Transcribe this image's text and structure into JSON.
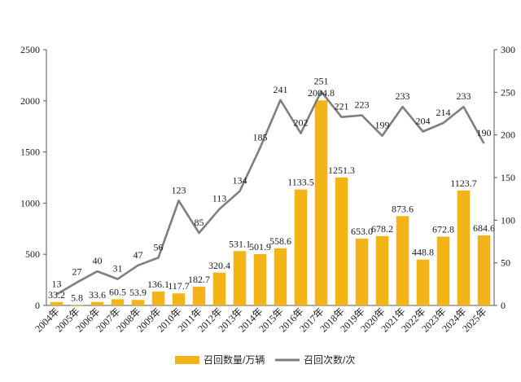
{
  "chart_data": {
    "type": "bar",
    "categories": [
      "2004年",
      "2005年",
      "2006年",
      "2007年",
      "2008年",
      "2009年",
      "2010年",
      "2011年",
      "2012年",
      "2013年",
      "2014年",
      "2015年",
      "2016年",
      "2017年",
      "2018年",
      "2019年",
      "2020年",
      "2021年",
      "2022年",
      "2023年",
      "2024年",
      "2025年"
    ],
    "series": [
      {
        "name": "召回数量/万辆",
        "type": "bar",
        "axis": "left",
        "color": "#f2b416",
        "values": [
          33.2,
          5.8,
          33.6,
          60.5,
          53.9,
          136.1,
          117.7,
          182.7,
          320.4,
          531.1,
          501.9,
          558.6,
          1133.5,
          2004.8,
          1251.3,
          653.0,
          678.2,
          873.6,
          448.8,
          672.8,
          1123.7,
          684.6
        ],
        "labels": [
          "33.2",
          "5.8",
          "33.6",
          "60.5",
          "53.9",
          "136.1",
          "117.7",
          "182.7",
          "320.4",
          "531.1",
          "501.9",
          "558.6",
          "1133.5",
          "2004.8",
          "1251.3",
          "653.0",
          "678.2",
          "873.6",
          "448.8",
          "672.8",
          "1123.7",
          "684.6"
        ]
      },
      {
        "name": "召回次数/次",
        "type": "line",
        "axis": "right",
        "color": "#7f7f7f",
        "values": [
          13,
          27,
          40,
          31,
          47,
          56,
          123,
          85,
          113,
          134,
          185,
          241,
          202,
          251,
          221,
          223,
          199,
          233,
          204,
          214,
          233,
          190
        ],
        "labels": [
          "13",
          "27",
          "40",
          "31",
          "47",
          "56",
          "123",
          "85",
          "113",
          "134",
          "185",
          "241",
          "202",
          "251",
          "221",
          "223",
          "199",
          "233",
          "204",
          "214",
          "233",
          "190"
        ]
      }
    ],
    "y_left": {
      "ylim": [
        0,
        2500
      ],
      "ticks": [
        "0",
        "500",
        "1000",
        "1500",
        "2000",
        "2500"
      ]
    },
    "y_right": {
      "ylim": [
        0,
        300
      ],
      "ticks": [
        "0",
        "50",
        "100",
        "150",
        "200",
        "250",
        "300"
      ]
    },
    "grid": false,
    "legend_position": "bottom-center",
    "title": "",
    "xlabel": "",
    "ylabel": ""
  }
}
